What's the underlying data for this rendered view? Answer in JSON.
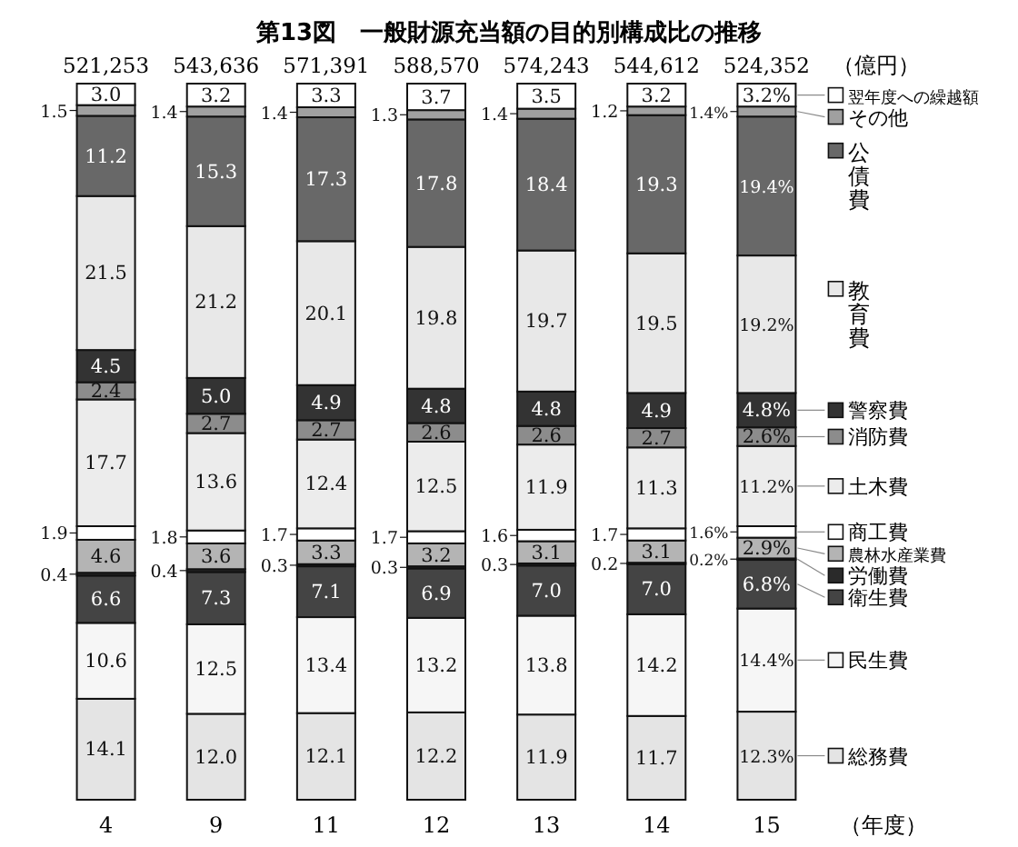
{
  "chart_data": {
    "type": "bar",
    "stacked": true,
    "title": "第13図　一般財源充当額の目的別構成比の推移",
    "xlabel": "（年度）",
    "legend": "right",
    "annotations": [
      "521,253",
      "543,636",
      "571,391",
      "588,570",
      "574,243",
      "544,612",
      "524,352",
      "（億円）"
    ],
    "categories": [
      "4",
      "9",
      "11",
      "12",
      "13",
      "14",
      "15"
    ],
    "series": [
      {
        "name": "総務費",
        "color": "#e4e4e4",
        "values": [
          14.1,
          12.0,
          12.1,
          12.2,
          11.9,
          11.7,
          12.3
        ],
        "value_labels": [
          "14.1",
          "12.0",
          "12.1",
          "12.2",
          "11.9",
          "11.7",
          "12.3%"
        ]
      },
      {
        "name": "民生費",
        "color": "#f6f6f6",
        "values": [
          10.6,
          12.5,
          13.4,
          13.2,
          13.8,
          14.2,
          14.4
        ],
        "value_labels": [
          "10.6",
          "12.5",
          "13.4",
          "13.2",
          "13.8",
          "14.2",
          "14.4%"
        ]
      },
      {
        "name": "衛生費",
        "color": "#444444",
        "values": [
          6.6,
          7.3,
          7.1,
          6.9,
          7.0,
          7.0,
          6.8
        ],
        "value_labels": [
          "6.6",
          "7.3",
          "7.1",
          "6.9",
          "7.0",
          "7.0",
          "6.8%"
        ]
      },
      {
        "name": "労働費",
        "color": "#2a2a2a",
        "values": [
          0.4,
          0.4,
          0.3,
          0.3,
          0.3,
          0.2,
          0.2
        ],
        "value_labels": [
          "0.4",
          "0.4",
          "0.3",
          "0.3",
          "0.3",
          "0.2",
          "0.2%"
        ]
      },
      {
        "name": "農林水産業費",
        "color": "#b4b4b4",
        "values": [
          4.6,
          3.6,
          3.3,
          3.2,
          3.1,
          3.1,
          2.9
        ],
        "value_labels": [
          "4.6",
          "3.6",
          "3.3",
          "3.2",
          "3.1",
          "3.1",
          "2.9%"
        ]
      },
      {
        "name": "商工費",
        "color": "#ffffff",
        "values": [
          1.9,
          1.8,
          1.7,
          1.7,
          1.6,
          1.7,
          1.6
        ],
        "value_labels": [
          "1.9",
          "1.8",
          "1.7",
          "1.7",
          "1.6",
          "1.7",
          "1.6%"
        ]
      },
      {
        "name": "土木費",
        "color": "#ececec",
        "values": [
          17.7,
          13.6,
          12.4,
          12.5,
          11.9,
          11.3,
          11.2
        ],
        "value_labels": [
          "17.7",
          "13.6",
          "12.4",
          "12.5",
          "11.9",
          "11.3",
          "11.2%"
        ]
      },
      {
        "name": "消防費",
        "color": "#8c8c8c",
        "values": [
          2.4,
          2.7,
          2.7,
          2.6,
          2.6,
          2.7,
          2.6
        ],
        "value_labels": [
          "2.4",
          "2.7",
          "2.7",
          "2.6",
          "2.6",
          "2.7",
          "2.6%"
        ]
      },
      {
        "name": "警察費",
        "color": "#333333",
        "values": [
          4.5,
          5.0,
          4.9,
          4.8,
          4.8,
          4.9,
          4.8
        ],
        "value_labels": [
          "4.5",
          "5.0",
          "4.9",
          "4.8",
          "4.8",
          "4.9",
          "4.8%"
        ]
      },
      {
        "name": "教育費",
        "color": "#e8e8e8",
        "values": [
          21.5,
          21.2,
          20.1,
          19.8,
          19.7,
          19.5,
          19.2
        ],
        "value_labels": [
          "21.5",
          "21.2",
          "20.1",
          "19.8",
          "19.7",
          "19.5",
          "19.2%"
        ]
      },
      {
        "name": "公債費",
        "color": "#686868",
        "values": [
          11.2,
          15.3,
          17.3,
          17.8,
          18.4,
          19.3,
          19.4
        ],
        "value_labels": [
          "11.2",
          "15.3",
          "17.3",
          "17.8",
          "18.4",
          "19.3",
          "19.4%"
        ]
      },
      {
        "name": "その他",
        "color": "#a0a0a0",
        "values": [
          1.5,
          1.4,
          1.4,
          1.3,
          1.4,
          1.2,
          1.4
        ],
        "value_labels": [
          "1.5",
          "1.4",
          "1.4",
          "1.3",
          "1.4",
          "1.2",
          "1.4%"
        ]
      },
      {
        "name": "翌年度への繰越額",
        "color": "#ffffff",
        "values": [
          3.0,
          3.2,
          3.3,
          3.7,
          3.5,
          3.2,
          3.2
        ],
        "value_labels": [
          "3.0",
          "3.2",
          "3.3",
          "3.7",
          "3.5",
          "3.2",
          "3.2%"
        ]
      }
    ]
  }
}
